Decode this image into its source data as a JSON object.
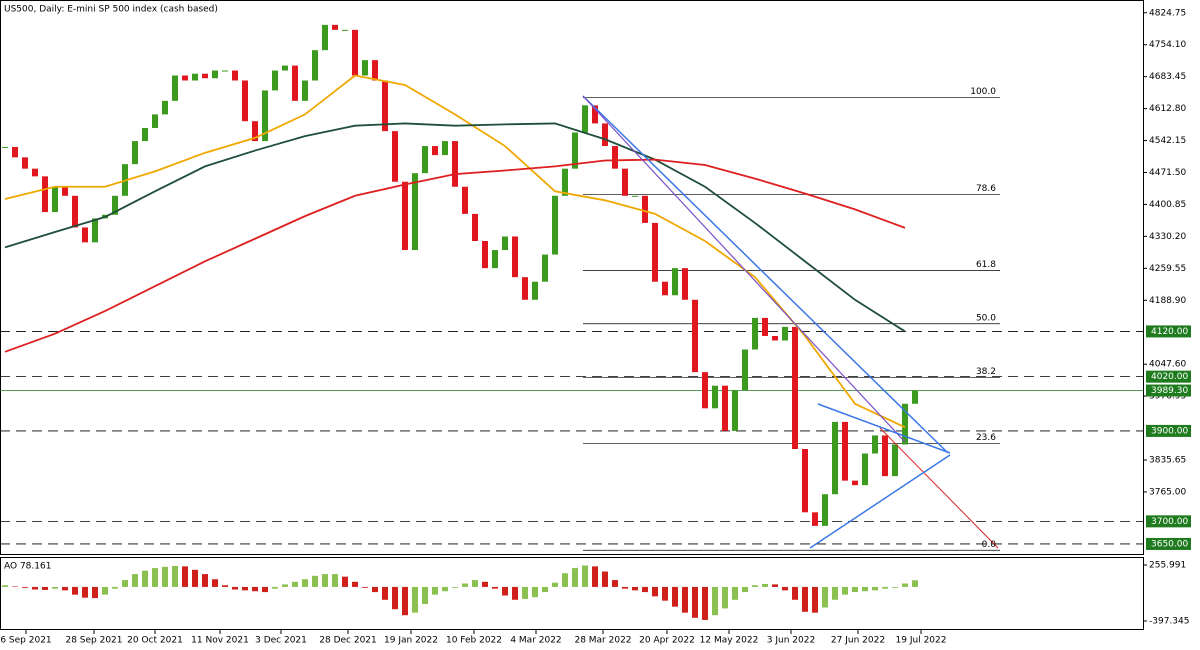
{
  "chart_data": {
    "type": "candlestick",
    "title": "US500, Daily:  E-mini SP 500 index (cash based)",
    "closes": [
      4528,
      4505,
      4480,
      4463,
      4384,
      4440,
      4420,
      4350,
      4317,
      4370,
      4378,
      4420,
      4490,
      4541,
      4570,
      4600,
      4630,
      4686,
      4675,
      4690,
      4680,
      4697,
      4697,
      4675,
      4585,
      4541,
      4653,
      4697,
      4708,
      4630,
      4675,
      4742,
      4798,
      4787,
      4787,
      4686,
      4720,
      4675,
      4563,
      4451,
      4300,
      4470,
      4530,
      4510,
      4541,
      4440,
      4380,
      4320,
      4260,
      4300,
      4330,
      4240,
      4190,
      4230,
      4290,
      4420,
      4480,
      4560,
      4620,
      4580,
      4530,
      4480,
      4420,
      4420,
      4360,
      4230,
      4200,
      4260,
      4190,
      4030,
      3950,
      4000,
      3900,
      3990,
      4080,
      4150,
      4110,
      4100,
      4130,
      3860,
      3720,
      3690,
      3760,
      3920,
      3790,
      3780,
      3850,
      3890,
      3800,
      3870,
      3960,
      3989.3
    ],
    "up_color": "#3c9a1e",
    "down_color": "#e0171e",
    "xlim": [
      -0.5,
      113.8
    ],
    "ylim": [
      3630,
      4853
    ],
    "yticks": [
      {
        "value": 4824.75,
        "label": "4824.75"
      },
      {
        "value": 4754.1,
        "label": "4754.10"
      },
      {
        "value": 4683.45,
        "label": "4683.45"
      },
      {
        "value": 4612.8,
        "label": "4612.80"
      },
      {
        "value": 4542.15,
        "label": "4542.15"
      },
      {
        "value": 4471.5,
        "label": "4471.50"
      },
      {
        "value": 4400.85,
        "label": "4400.85"
      },
      {
        "value": 4330.2,
        "label": "4330.20"
      },
      {
        "value": 4259.55,
        "label": "4259.55"
      },
      {
        "value": 4188.9,
        "label": "4188.90"
      },
      {
        "value": 4047.6,
        "label": "4047.60"
      },
      {
        "value": 3976.95,
        "label": "3976.95"
      },
      {
        "value": 3835.65,
        "label": "3835.65"
      },
      {
        "value": 3765,
        "label": "3765.00"
      }
    ],
    "xticks": [
      {
        "value": 2.1,
        "label": "6 Sep 2021"
      },
      {
        "value": 8.9,
        "label": "28 Sep 2021"
      },
      {
        "value": 15,
        "label": "20 Oct 2021"
      },
      {
        "value": 21.5,
        "label": "11 Nov 2021"
      },
      {
        "value": 27.6,
        "label": "3 Dec 2021"
      },
      {
        "value": 34.3,
        "label": "28 Dec 2021"
      },
      {
        "value": 40.6,
        "label": "19 Jan 2022"
      },
      {
        "value": 46.9,
        "label": "10 Feb 2022"
      },
      {
        "value": 53.1,
        "label": "4 Mar 2022"
      },
      {
        "value": 59.8,
        "label": "28 Mar 2022"
      },
      {
        "value": 66.2,
        "label": "20 Apr 2022"
      },
      {
        "value": 72.4,
        "label": "12 May 2022"
      },
      {
        "value": 78.6,
        "label": "3 Jun 2022"
      },
      {
        "value": 85.3,
        "label": "27 Jun 2022"
      },
      {
        "value": 91.6,
        "label": "19 Jul 2022"
      }
    ],
    "ma_x": [
      0,
      5,
      10,
      15,
      20,
      25,
      30,
      35,
      40,
      45,
      50,
      55,
      60,
      65,
      70,
      75,
      80,
      85,
      90
    ],
    "moving_averages": [
      {
        "color": "#f0a800",
        "values": [
          4413,
          4440,
          4440,
          4474,
          4515,
          4548,
          4600,
          4686,
          4665,
          4600,
          4530,
          4430,
          4410,
          4380,
          4320,
          4240,
          4110,
          3960,
          3908
        ]
      },
      {
        "color": "#1f4f3a",
        "values": [
          4306,
          4340,
          4373,
          4430,
          4485,
          4520,
          4552,
          4575,
          4580,
          4575,
          4578,
          4580,
          4545,
          4500,
          4440,
          4360,
          4275,
          4190,
          4120
        ]
      },
      {
        "color": "#dd1f1f",
        "values": [
          4075,
          4115,
          4165,
          4220,
          4275,
          4325,
          4375,
          4420,
          4445,
          4468,
          4476,
          4485,
          4498,
          4500,
          4488,
          4458,
          4425,
          4390,
          4349
        ]
      }
    ],
    "levels": [
      {
        "value": 4120,
        "label": "4120.00"
      },
      {
        "value": 4020,
        "label": "4020.00"
      },
      {
        "value": 3900,
        "label": "3900.00"
      },
      {
        "value": 3700,
        "label": "3700.00"
      },
      {
        "value": 3650,
        "label": "3650.00"
      }
    ],
    "last_price": {
      "value": 3989.3,
      "label": "3989.30"
    },
    "level_color": "#1e7b1e",
    "fib_x": [
      57.8,
      99.5
    ],
    "fib_labels": [
      "100.0",
      "78.6",
      "61.8",
      "50.0",
      "38.2",
      "23.6",
      "0.0"
    ],
    "fib_prices": [
      4637,
      4423,
      4255,
      4137,
      4018,
      3872,
      3636
    ],
    "ao": {
      "title": "AO 78.161",
      "values": [
        20,
        5,
        -10,
        -30,
        -35,
        -20,
        -40,
        -90,
        -125,
        -130,
        -90,
        -20,
        80,
        150,
        190,
        220,
        235,
        245,
        240,
        200,
        150,
        90,
        20,
        -30,
        -40,
        -50,
        -60,
        -20,
        30,
        60,
        90,
        130,
        150,
        150,
        120,
        60,
        -10,
        -60,
        -150,
        -260,
        -330,
        -300,
        -200,
        -90,
        -50,
        -10,
        40,
        80,
        60,
        -20,
        -100,
        -150,
        -140,
        -120,
        -60,
        50,
        160,
        220,
        250,
        240,
        180,
        80,
        -20,
        -40,
        -60,
        -110,
        -160,
        -230,
        -300,
        -360,
        -385,
        -330,
        -250,
        -150,
        -60,
        20,
        35,
        30,
        -40,
        -150,
        -290,
        -300,
        -240,
        -150,
        -90,
        -60,
        -50,
        -40,
        -20,
        -10,
        40,
        78.161
      ],
      "ylim": [
        -397.345,
        255.991
      ],
      "yticks": [
        255.991,
        -397.345
      ],
      "up_color": "#8cc152",
      "down_color": "#d0201c"
    }
  }
}
